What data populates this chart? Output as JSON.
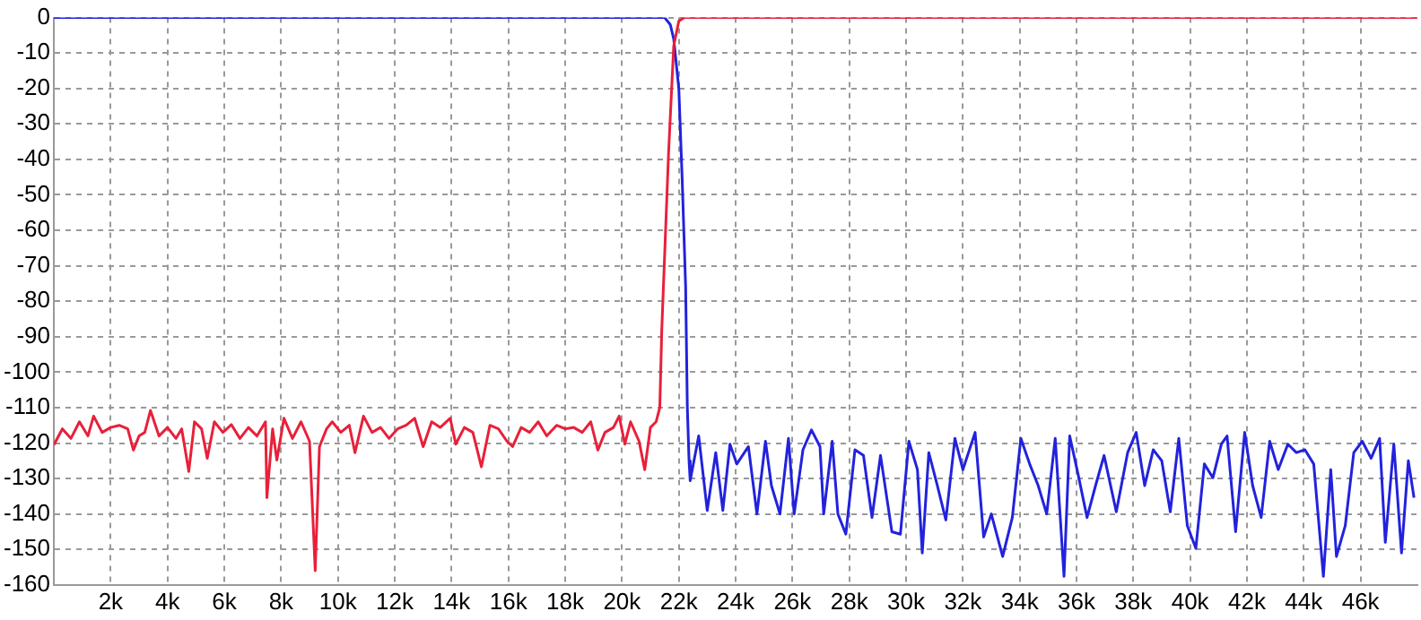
{
  "chart_data": {
    "type": "line",
    "xlim": [
      0,
      48000
    ],
    "ylim": [
      -160,
      0
    ],
    "xticks": [
      {
        "value": 2000,
        "label": "2k"
      },
      {
        "value": 4000,
        "label": "4k"
      },
      {
        "value": 6000,
        "label": "6k"
      },
      {
        "value": 8000,
        "label": "8k"
      },
      {
        "value": 10000,
        "label": "10k"
      },
      {
        "value": 12000,
        "label": "12k"
      },
      {
        "value": 14000,
        "label": "14k"
      },
      {
        "value": 16000,
        "label": "16k"
      },
      {
        "value": 18000,
        "label": "18k"
      },
      {
        "value": 20000,
        "label": "20k"
      },
      {
        "value": 22000,
        "label": "22k"
      },
      {
        "value": 24000,
        "label": "24k"
      },
      {
        "value": 26000,
        "label": "26k"
      },
      {
        "value": 28000,
        "label": "28k"
      },
      {
        "value": 30000,
        "label": "30k"
      },
      {
        "value": 32000,
        "label": "32k"
      },
      {
        "value": 34000,
        "label": "34k"
      },
      {
        "value": 36000,
        "label": "36k"
      },
      {
        "value": 38000,
        "label": "38k"
      },
      {
        "value": 40000,
        "label": "40k"
      },
      {
        "value": 42000,
        "label": "42k"
      },
      {
        "value": 44000,
        "label": "44k"
      },
      {
        "value": 46000,
        "label": "46k"
      }
    ],
    "yticks": [
      0,
      -10,
      -20,
      -30,
      -40,
      -50,
      -60,
      -70,
      -80,
      -90,
      -100,
      -110,
      -120,
      -130,
      -140,
      -150,
      -160
    ],
    "grid": true,
    "legend": false,
    "marker": "none",
    "line_style": "solid",
    "series": [
      {
        "color": "#e8203a",
        "x": [
          0,
          300,
          600,
          900,
          1200,
          1400,
          1700,
          2000,
          2300,
          2600,
          2800,
          3000,
          3200,
          3400,
          3700,
          4000,
          4300,
          4500,
          4750,
          4950,
          5200,
          5400,
          5650,
          5950,
          6250,
          6550,
          6850,
          7150,
          7450,
          7500,
          7700,
          7850,
          8100,
          8400,
          8700,
          9000,
          9200,
          9350,
          9600,
          9800,
          10100,
          10400,
          10600,
          10900,
          11200,
          11500,
          11800,
          12100,
          12400,
          12700,
          13000,
          13300,
          13600,
          13950,
          14150,
          14450,
          14750,
          15050,
          15350,
          15650,
          15950,
          16150,
          16450,
          16750,
          17050,
          17350,
          17700,
          18000,
          18300,
          18600,
          18900,
          19150,
          19400,
          19700,
          19900,
          20100,
          20300,
          20600,
          20800,
          21000,
          21200,
          21330,
          21400,
          21640,
          21820,
          22000,
          22200,
          48000
        ],
        "values": [
          -120.5,
          -116,
          -118.7,
          -114,
          -118,
          -112.4,
          -117,
          -115.6,
          -115,
          -116,
          -122,
          -118,
          -117,
          -110.8,
          -118,
          -115.6,
          -118.7,
          -116,
          -128,
          -114,
          -116,
          -124.3,
          -114,
          -117,
          -114.8,
          -118.7,
          -115.6,
          -118,
          -114,
          -135.4,
          -116,
          -124.8,
          -113,
          -118.7,
          -114,
          -119.5,
          -156,
          -121,
          -116,
          -114,
          -117,
          -115,
          -122.7,
          -112.4,
          -117,
          -115.6,
          -118.7,
          -116,
          -115,
          -113,
          -121,
          -114,
          -115.6,
          -113,
          -120.3,
          -115.6,
          -117,
          -126.7,
          -115,
          -116,
          -119.5,
          -121,
          -115.6,
          -117,
          -114,
          -118,
          -115,
          -116,
          -115.6,
          -117,
          -114,
          -122,
          -117,
          -115.6,
          -112.4,
          -120.3,
          -114,
          -119.5,
          -127.5,
          -115.6,
          -114,
          -110,
          -88,
          -38,
          -8,
          -1,
          0,
          0
        ]
      },
      {
        "color": "#2222dd",
        "x": [
          0,
          21500,
          21700,
          21820,
          22000,
          22120,
          22240,
          22300,
          22360,
          22400,
          22700,
          23000,
          23300,
          23550,
          23800,
          24040,
          24450,
          24750,
          25050,
          25260,
          25560,
          25860,
          26060,
          26370,
          26670,
          26970,
          27100,
          27400,
          27600,
          27880,
          28200,
          28500,
          28800,
          29100,
          29500,
          29800,
          30100,
          30400,
          30570,
          30800,
          31100,
          31400,
          31720,
          32000,
          32430,
          32730,
          33000,
          33400,
          33740,
          34040,
          34350,
          34650,
          34950,
          35250,
          35560,
          35760,
          36060,
          36370,
          36670,
          36970,
          37400,
          37800,
          38100,
          38400,
          38700,
          39000,
          39300,
          39600,
          39900,
          40200,
          40500,
          40800,
          41100,
          41300,
          41600,
          41920,
          42200,
          42500,
          42800,
          43100,
          43440,
          43740,
          44040,
          44350,
          44690,
          44950,
          45150,
          45460,
          45760,
          46060,
          46370,
          46670,
          46870,
          47170,
          47440,
          47680,
          47880
        ],
        "values": [
          0,
          0,
          -2,
          -6,
          -20,
          -46,
          -76,
          -110,
          -125,
          -130.6,
          -118,
          -139,
          -122.7,
          -139,
          -120.3,
          -125.9,
          -121,
          -140,
          -119.5,
          -132,
          -140,
          -118.7,
          -140,
          -121.9,
          -116.3,
          -121,
          -140,
          -119.5,
          -140,
          -145.7,
          -121.9,
          -123.5,
          -141,
          -123.5,
          -145,
          -145.7,
          -119.5,
          -127.5,
          -151,
          -122.7,
          -132,
          -141.7,
          -118.7,
          -127.5,
          -117,
          -146.5,
          -140,
          -152,
          -141,
          -118.7,
          -125.9,
          -132,
          -140,
          -118.7,
          -157.6,
          -118,
          -129,
          -141,
          -132,
          -123.5,
          -139.4,
          -122.7,
          -117,
          -132,
          -121.9,
          -125,
          -139.4,
          -118.7,
          -143.3,
          -149.7,
          -125.9,
          -129.8,
          -120.3,
          -118,
          -145,
          -117,
          -132,
          -141,
          -119.5,
          -127.5,
          -120.3,
          -122.7,
          -121.9,
          -125.9,
          -157.6,
          -127.5,
          -152,
          -143.3,
          -122.7,
          -119.5,
          -124.3,
          -118.7,
          -148,
          -120.3,
          -151,
          -125,
          -135.4
        ]
      }
    ]
  }
}
